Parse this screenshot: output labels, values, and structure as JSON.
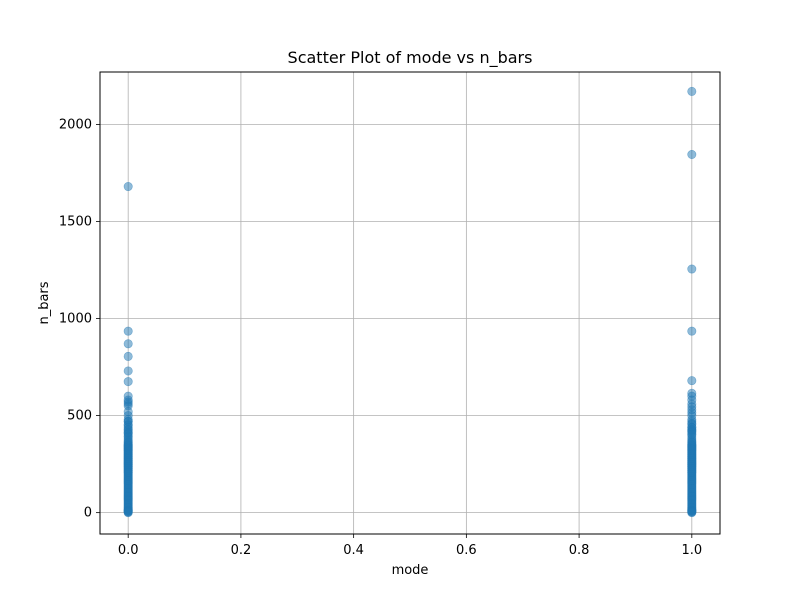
{
  "chart_data": {
    "type": "scatter",
    "title": "Scatter Plot of mode vs n_bars",
    "xlabel": "mode",
    "ylabel": "n_bars",
    "xlim": [
      -0.05,
      1.05
    ],
    "ylim": [
      -110,
      2270
    ],
    "x_ticks": [
      0.0,
      0.2,
      0.4,
      0.6,
      0.8,
      1.0
    ],
    "x_tick_labels": [
      "0.0",
      "0.2",
      "0.4",
      "0.6",
      "0.8",
      "1.0"
    ],
    "y_ticks": [
      0,
      500,
      1000,
      1500,
      2000
    ],
    "y_tick_labels": [
      "0",
      "500",
      "1000",
      "1500",
      "2000"
    ],
    "grid": true,
    "legend": "none",
    "marker_color": "#1f77b4",
    "marker_alpha": 0.5,
    "series": [
      {
        "x": [
          0,
          0,
          0,
          0,
          0,
          0,
          0,
          0,
          0,
          0,
          0,
          0,
          0,
          0,
          0,
          0,
          0,
          0,
          0,
          0,
          0,
          0,
          0,
          0,
          0,
          0,
          0,
          0,
          0,
          0,
          0,
          0,
          0,
          0,
          0,
          0,
          0,
          0,
          0,
          0,
          0,
          0,
          0,
          0,
          0,
          0,
          0,
          0,
          0,
          0,
          0,
          0,
          0,
          0,
          0,
          0,
          0,
          0,
          0,
          0,
          0,
          0,
          0,
          0,
          0,
          0,
          0,
          0,
          0,
          0,
          0,
          0,
          0,
          0,
          0,
          0,
          0,
          0,
          0,
          0,
          0,
          0,
          0,
          0,
          0,
          0,
          0,
          0,
          0,
          0,
          0,
          0,
          0,
          0,
          0,
          0,
          0,
          0,
          0,
          0,
          0,
          0,
          0,
          0,
          0,
          0,
          0,
          0,
          0,
          0,
          0,
          0,
          0,
          0,
          0,
          0,
          0,
          0,
          0,
          0,
          1,
          1,
          1,
          1,
          1,
          1,
          1,
          1,
          1,
          1,
          1,
          1,
          1,
          1,
          1,
          1,
          1,
          1,
          1,
          1,
          1,
          1,
          1,
          1,
          1,
          1,
          1,
          1,
          1,
          1,
          1,
          1,
          1,
          1,
          1,
          1,
          1,
          1,
          1,
          1,
          1,
          1,
          1,
          1,
          1,
          1,
          1,
          1,
          1,
          1,
          1,
          1,
          1,
          1,
          1,
          1,
          1,
          1,
          1,
          1,
          1,
          1,
          1,
          1,
          1,
          1,
          1,
          1,
          1,
          1,
          1,
          1,
          1,
          1,
          1,
          1,
          1,
          1,
          1,
          1,
          1,
          1,
          1,
          1,
          1,
          1,
          1,
          1,
          1,
          1,
          1,
          1,
          1,
          1,
          1,
          1,
          1,
          1,
          1,
          1,
          1,
          1,
          1,
          1,
          1,
          1,
          1,
          1,
          1,
          1,
          1,
          1,
          1,
          1,
          1,
          1,
          1,
          1,
          1,
          1
        ],
        "y": [
          1680,
          935,
          870,
          805,
          730,
          675,
          600,
          580,
          570,
          560,
          550,
          520,
          500,
          480,
          470,
          450,
          430,
          410,
          395,
          380,
          365,
          350,
          340,
          330,
          320,
          310,
          300,
          290,
          280,
          270,
          260,
          250,
          240,
          230,
          220,
          210,
          200,
          190,
          180,
          170,
          160,
          150,
          140,
          130,
          120,
          110,
          100,
          90,
          80,
          70,
          60,
          50,
          40,
          30,
          20,
          10,
          5,
          0,
          355,
          335,
          315,
          295,
          275,
          255,
          235,
          215,
          195,
          175,
          155,
          135,
          115,
          95,
          75,
          55,
          35,
          15,
          345,
          325,
          305,
          285,
          265,
          245,
          225,
          205,
          185,
          165,
          145,
          125,
          105,
          85,
          65,
          45,
          25,
          12,
          8,
          3,
          470,
          455,
          440,
          425,
          415,
          405,
          390,
          372,
          362,
          348,
          338,
          328,
          318,
          308,
          298,
          288,
          278,
          268,
          258,
          248,
          238,
          228,
          218,
          208,
          2170,
          1845,
          1255,
          935,
          680,
          615,
          600,
          580,
          560,
          545,
          530,
          515,
          500,
          480,
          460,
          440,
          430,
          420,
          400,
          380,
          365,
          350,
          340,
          330,
          320,
          310,
          300,
          290,
          280,
          270,
          260,
          250,
          240,
          230,
          220,
          210,
          200,
          190,
          180,
          170,
          160,
          150,
          140,
          130,
          120,
          110,
          100,
          90,
          80,
          70,
          60,
          50,
          40,
          30,
          20,
          10,
          5,
          0,
          355,
          335,
          315,
          295,
          275,
          255,
          235,
          215,
          195,
          175,
          155,
          135,
          115,
          95,
          75,
          55,
          35,
          15,
          345,
          325,
          305,
          285,
          265,
          245,
          225,
          205,
          185,
          165,
          145,
          125,
          105,
          85,
          65,
          45,
          25,
          12,
          8,
          3,
          470,
          455,
          440,
          425,
          415,
          405,
          390,
          372,
          362,
          348,
          338,
          328,
          318,
          308,
          298,
          288,
          278,
          268,
          258,
          248,
          238,
          228,
          218,
          208
        ]
      }
    ]
  }
}
